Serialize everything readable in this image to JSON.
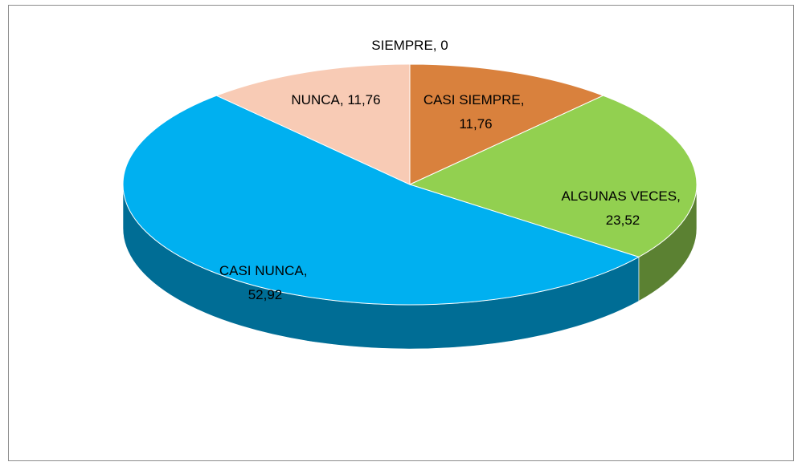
{
  "chart_data": {
    "type": "pie3d",
    "categories": [
      "SIEMPRE",
      "CASI SIEMPRE",
      "ALGUNAS VECES",
      "CASI NUNCA",
      "NUNCA"
    ],
    "values": [
      0,
      11.76,
      23.52,
      52.92,
      11.76
    ],
    "value_labels": [
      "0",
      "11,76",
      "23,52",
      "52,92",
      "11,76"
    ],
    "label_separator": ", ",
    "colors": [
      "#4472c4",
      "#d9813d",
      "#92d050",
      "#00b0f0",
      "#f8cbb5"
    ]
  }
}
